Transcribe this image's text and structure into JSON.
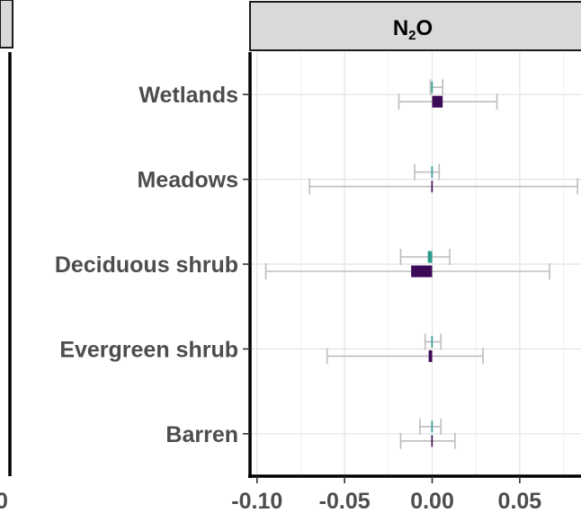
{
  "chart_data": {
    "type": "bar",
    "orientation": "horizontal",
    "facet_title": {
      "main": "N",
      "subscript": "2",
      "suffix": "O"
    },
    "categories": [
      "Wetlands",
      "Meadows",
      "Deciduous shrub",
      "Evergreen shrub",
      "Barren"
    ],
    "xlim": [
      -0.104,
      0.086
    ],
    "x_ticks": [
      -0.1,
      -0.05,
      0.0,
      0.05
    ],
    "x_tick_labels": [
      "-0.10",
      "-0.05",
      "0.00",
      "0.05"
    ],
    "left_panel_tick_fragment": "0",
    "grid": true,
    "series": [
      {
        "color": "#2a9d8f",
        "values": [
          -0.0005,
          -0.0005,
          -0.0025,
          -0.0005,
          -0.0005
        ],
        "err_low": [
          -0.001,
          -0.01,
          -0.018,
          -0.004,
          -0.007
        ],
        "err_high": [
          0.006,
          0.004,
          0.01,
          0.005,
          0.005
        ]
      },
      {
        "color": "#3d0a57",
        "values": [
          0.006,
          -0.0005,
          -0.012,
          -0.002,
          -0.0005
        ],
        "err_low": [
          -0.019,
          -0.07,
          -0.095,
          -0.06,
          -0.018
        ],
        "err_high": [
          0.037,
          0.083,
          0.067,
          0.029,
          0.013
        ]
      }
    ],
    "error_bar_color": "#bdbdbd"
  }
}
